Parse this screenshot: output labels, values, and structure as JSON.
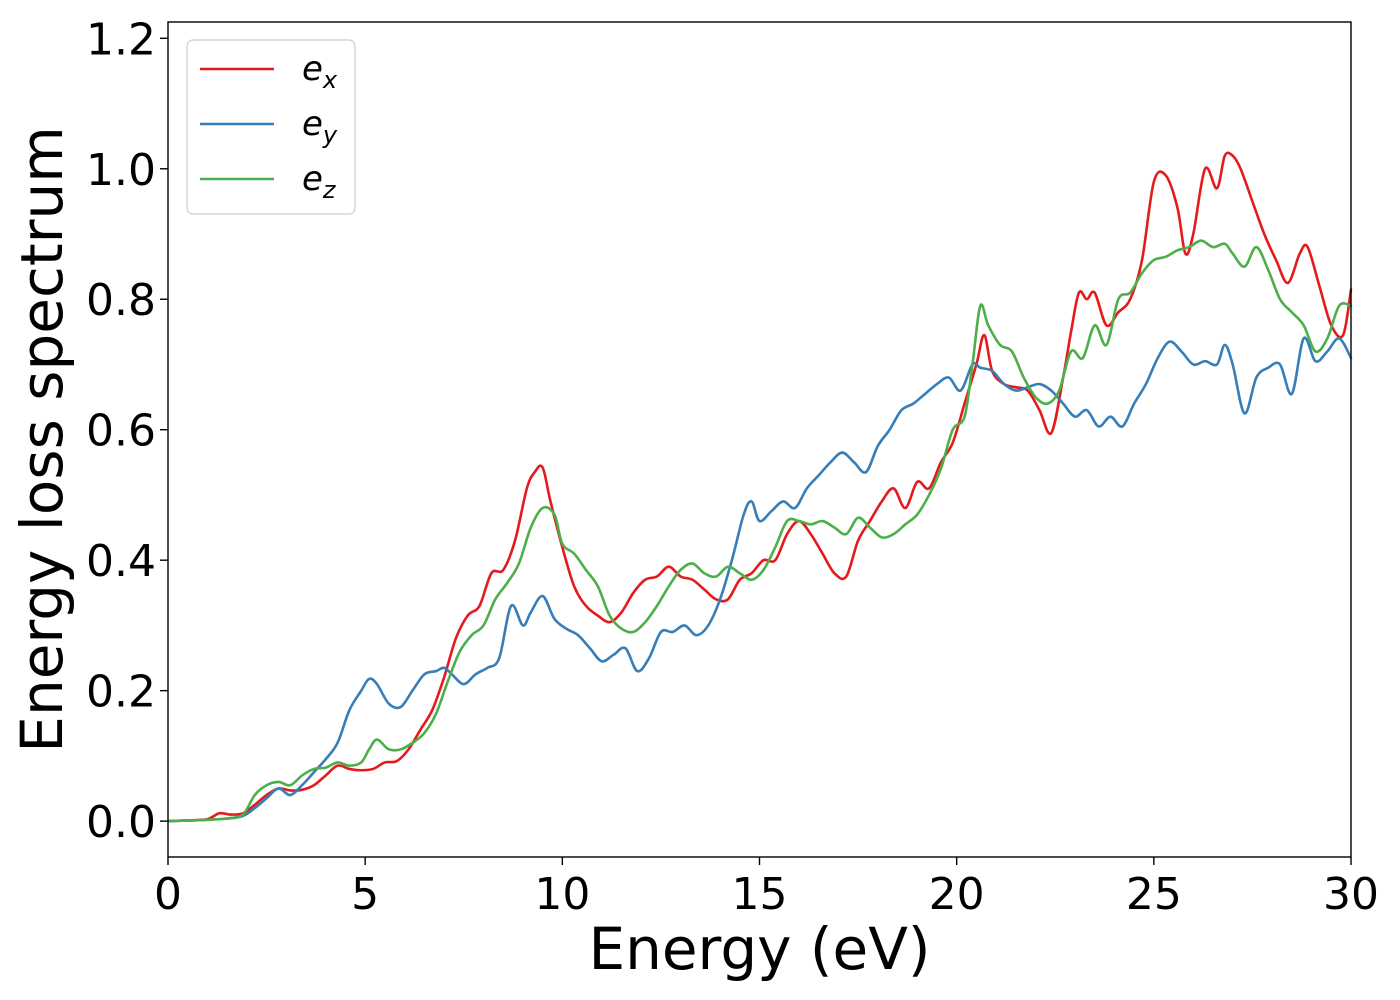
{
  "chart_data": {
    "type": "line",
    "xlabel": "Energy (eV)",
    "ylabel": "Energy loss spectrum",
    "xlim": [
      0,
      30
    ],
    "ylim": [
      -0.055,
      1.225
    ],
    "xticks": [
      "0",
      "5",
      "10",
      "15",
      "20",
      "25",
      "30"
    ],
    "yticks": [
      "0.0",
      "0.2",
      "0.4",
      "0.6",
      "0.8",
      "1.0",
      "1.2"
    ],
    "grid": false,
    "legend_position": "top-left",
    "series": [
      {
        "name": "e_x",
        "label_base": "e",
        "label_sub": "x",
        "color": "#e41a1c",
        "x": [
          0,
          0.5,
          1.0,
          1.3,
          1.6,
          1.9,
          2.2,
          2.5,
          2.8,
          3.1,
          3.4,
          3.7,
          4.0,
          4.3,
          4.6,
          4.9,
          5.2,
          5.5,
          5.8,
          6.1,
          6.4,
          6.7,
          7.0,
          7.3,
          7.6,
          7.9,
          8.2,
          8.5,
          8.8,
          9.1,
          9.3,
          9.5,
          9.7,
          10.0,
          10.3,
          10.6,
          10.9,
          11.2,
          11.5,
          11.8,
          12.1,
          12.4,
          12.7,
          13.0,
          13.3,
          13.6,
          13.9,
          14.2,
          14.5,
          14.8,
          15.1,
          15.4,
          15.7,
          16.0,
          16.3,
          16.6,
          16.9,
          17.2,
          17.5,
          17.8,
          18.1,
          18.4,
          18.7,
          19.0,
          19.3,
          19.6,
          19.9,
          20.2,
          20.5,
          20.7,
          20.9,
          21.2,
          21.5,
          21.8,
          22.1,
          22.4,
          22.7,
          22.9,
          23.1,
          23.3,
          23.5,
          23.8,
          24.1,
          24.4,
          24.7,
          25.0,
          25.3,
          25.6,
          25.8,
          26.0,
          26.3,
          26.6,
          26.8,
          27.0,
          27.2,
          27.5,
          27.8,
          28.1,
          28.4,
          28.7,
          28.9,
          29.2,
          29.5,
          29.8,
          30.0
        ],
        "y": [
          0.0,
          0.001,
          0.003,
          0.012,
          0.01,
          0.012,
          0.025,
          0.04,
          0.05,
          0.047,
          0.048,
          0.055,
          0.07,
          0.085,
          0.08,
          0.078,
          0.08,
          0.09,
          0.092,
          0.11,
          0.14,
          0.17,
          0.22,
          0.28,
          0.315,
          0.33,
          0.38,
          0.385,
          0.43,
          0.51,
          0.535,
          0.542,
          0.49,
          0.42,
          0.36,
          0.33,
          0.315,
          0.305,
          0.32,
          0.35,
          0.37,
          0.375,
          0.39,
          0.375,
          0.37,
          0.355,
          0.34,
          0.34,
          0.37,
          0.38,
          0.4,
          0.4,
          0.44,
          0.46,
          0.44,
          0.41,
          0.38,
          0.375,
          0.43,
          0.46,
          0.49,
          0.51,
          0.48,
          0.52,
          0.51,
          0.55,
          0.58,
          0.64,
          0.7,
          0.745,
          0.69,
          0.67,
          0.665,
          0.66,
          0.63,
          0.595,
          0.68,
          0.75,
          0.81,
          0.8,
          0.81,
          0.76,
          0.78,
          0.8,
          0.86,
          0.98,
          0.99,
          0.94,
          0.87,
          0.9,
          1.0,
          0.97,
          1.02,
          1.02,
          1.0,
          0.95,
          0.9,
          0.86,
          0.825,
          0.87,
          0.88,
          0.82,
          0.76,
          0.745,
          0.815
        ]
      },
      {
        "name": "e_y",
        "label_base": "e",
        "label_sub": "y",
        "color": "#377eb8",
        "x": [
          0,
          0.5,
          1.0,
          1.5,
          1.9,
          2.2,
          2.5,
          2.8,
          3.1,
          3.4,
          3.7,
          4.0,
          4.3,
          4.6,
          4.9,
          5.1,
          5.3,
          5.6,
          5.9,
          6.2,
          6.5,
          6.8,
          7.0,
          7.2,
          7.5,
          7.8,
          8.1,
          8.4,
          8.7,
          9.0,
          9.2,
          9.5,
          9.8,
          10.1,
          10.4,
          10.7,
          11.0,
          11.3,
          11.6,
          11.9,
          12.2,
          12.5,
          12.8,
          13.1,
          13.4,
          13.7,
          14.0,
          14.3,
          14.6,
          14.8,
          15.0,
          15.3,
          15.6,
          15.9,
          16.2,
          16.5,
          16.8,
          17.1,
          17.4,
          17.7,
          18.0,
          18.3,
          18.6,
          18.9,
          19.2,
          19.5,
          19.8,
          20.1,
          20.4,
          20.6,
          20.9,
          21.2,
          21.5,
          21.8,
          22.1,
          22.4,
          22.7,
          23.0,
          23.3,
          23.6,
          23.9,
          24.2,
          24.5,
          24.8,
          25.1,
          25.4,
          25.7,
          26.0,
          26.3,
          26.6,
          26.8,
          27.0,
          27.3,
          27.6,
          27.9,
          28.2,
          28.5,
          28.8,
          29.1,
          29.4,
          29.7,
          30.0
        ],
        "y": [
          0.0,
          0.001,
          0.002,
          0.004,
          0.008,
          0.02,
          0.035,
          0.05,
          0.04,
          0.055,
          0.075,
          0.095,
          0.12,
          0.17,
          0.2,
          0.218,
          0.21,
          0.18,
          0.175,
          0.2,
          0.225,
          0.23,
          0.235,
          0.225,
          0.21,
          0.225,
          0.235,
          0.25,
          0.33,
          0.3,
          0.32,
          0.345,
          0.31,
          0.295,
          0.285,
          0.265,
          0.245,
          0.255,
          0.265,
          0.23,
          0.25,
          0.29,
          0.29,
          0.3,
          0.285,
          0.3,
          0.34,
          0.4,
          0.47,
          0.49,
          0.46,
          0.475,
          0.49,
          0.48,
          0.51,
          0.53,
          0.55,
          0.565,
          0.55,
          0.535,
          0.575,
          0.6,
          0.63,
          0.64,
          0.655,
          0.67,
          0.68,
          0.66,
          0.7,
          0.695,
          0.69,
          0.67,
          0.66,
          0.665,
          0.67,
          0.66,
          0.64,
          0.62,
          0.63,
          0.605,
          0.62,
          0.605,
          0.64,
          0.67,
          0.71,
          0.735,
          0.72,
          0.7,
          0.705,
          0.7,
          0.73,
          0.7,
          0.625,
          0.68,
          0.695,
          0.7,
          0.655,
          0.74,
          0.705,
          0.72,
          0.74,
          0.71
        ]
      },
      {
        "name": "e_z",
        "label_base": "e",
        "label_sub": "z",
        "color": "#4daf4a",
        "x": [
          0,
          0.5,
          1.0,
          1.5,
          1.9,
          2.2,
          2.5,
          2.8,
          3.1,
          3.4,
          3.7,
          4.0,
          4.3,
          4.6,
          4.9,
          5.1,
          5.3,
          5.6,
          5.9,
          6.2,
          6.5,
          6.8,
          7.1,
          7.4,
          7.7,
          8.0,
          8.3,
          8.6,
          8.9,
          9.2,
          9.5,
          9.8,
          10.0,
          10.3,
          10.6,
          10.9,
          11.2,
          11.5,
          11.8,
          12.1,
          12.4,
          12.7,
          13.0,
          13.3,
          13.6,
          13.9,
          14.2,
          14.5,
          14.8,
          15.1,
          15.4,
          15.7,
          16.0,
          16.3,
          16.6,
          16.9,
          17.2,
          17.5,
          17.8,
          18.1,
          18.4,
          18.7,
          19.0,
          19.3,
          19.6,
          19.9,
          20.2,
          20.4,
          20.6,
          20.8,
          21.1,
          21.4,
          21.7,
          22.0,
          22.3,
          22.6,
          22.9,
          23.2,
          23.5,
          23.8,
          24.1,
          24.4,
          24.7,
          25.0,
          25.3,
          25.6,
          25.9,
          26.2,
          26.5,
          26.8,
          27.0,
          27.3,
          27.6,
          27.9,
          28.2,
          28.5,
          28.8,
          29.1,
          29.4,
          29.7,
          30.0
        ],
        "y": [
          0.0,
          0.001,
          0.002,
          0.004,
          0.01,
          0.04,
          0.055,
          0.06,
          0.055,
          0.07,
          0.08,
          0.082,
          0.09,
          0.085,
          0.09,
          0.11,
          0.125,
          0.11,
          0.11,
          0.12,
          0.135,
          0.165,
          0.215,
          0.26,
          0.285,
          0.3,
          0.34,
          0.365,
          0.395,
          0.45,
          0.48,
          0.47,
          0.425,
          0.41,
          0.385,
          0.36,
          0.315,
          0.295,
          0.29,
          0.305,
          0.33,
          0.36,
          0.385,
          0.395,
          0.38,
          0.375,
          0.39,
          0.38,
          0.37,
          0.385,
          0.42,
          0.46,
          0.46,
          0.455,
          0.46,
          0.45,
          0.44,
          0.465,
          0.45,
          0.435,
          0.44,
          0.455,
          0.47,
          0.5,
          0.54,
          0.6,
          0.62,
          0.7,
          0.79,
          0.76,
          0.73,
          0.72,
          0.68,
          0.65,
          0.64,
          0.66,
          0.72,
          0.71,
          0.76,
          0.73,
          0.8,
          0.81,
          0.84,
          0.86,
          0.865,
          0.875,
          0.88,
          0.89,
          0.88,
          0.885,
          0.87,
          0.85,
          0.88,
          0.845,
          0.8,
          0.78,
          0.76,
          0.72,
          0.74,
          0.79,
          0.79
        ]
      }
    ]
  }
}
